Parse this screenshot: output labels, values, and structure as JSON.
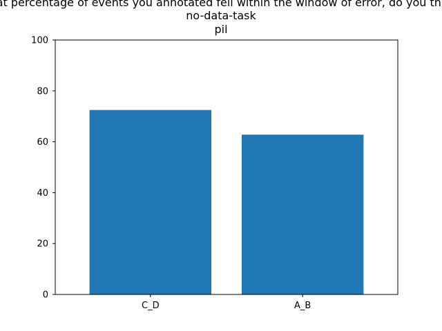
{
  "chart_data": {
    "type": "bar",
    "title_lines": [
      "What percentage of events you annotated fell within the window of error, do you think?",
      "no-data-task",
      "pil"
    ],
    "categories": [
      "C_D",
      "A_B"
    ],
    "values": [
      72.5,
      62.8
    ],
    "ylim": [
      0,
      100
    ],
    "yticks": [
      "0",
      "20",
      "40",
      "60",
      "80",
      "100"
    ],
    "xlabel": "",
    "ylabel": "",
    "bar_color": "#1f77b4",
    "grid": false
  }
}
